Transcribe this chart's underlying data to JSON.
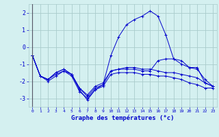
{
  "title": "Graphe des températures (°c)",
  "background_color": "#d4f0f0",
  "grid_color": "#aacccc",
  "line_color": "#0000cc",
  "xlim": [
    -0.5,
    23.5
  ],
  "ylim": [
    -3.5,
    2.5
  ],
  "yticks": [
    -3,
    -2,
    -1,
    0,
    1,
    2
  ],
  "xticks": [
    0,
    1,
    2,
    3,
    4,
    5,
    6,
    7,
    8,
    9,
    10,
    11,
    12,
    13,
    14,
    15,
    16,
    17,
    18,
    19,
    20,
    21,
    22,
    23
  ],
  "series": [
    {
      "x": [
        0,
        1,
        2,
        3,
        4,
        5,
        6,
        7,
        8,
        9,
        10,
        11,
        12,
        13,
        14,
        15,
        16,
        17,
        18,
        19,
        20,
        21,
        22,
        23
      ],
      "y": [
        -0.5,
        -1.7,
        -2.0,
        -1.7,
        -1.4,
        -1.6,
        -2.5,
        -3.1,
        -2.5,
        -2.3,
        -1.6,
        -1.5,
        -1.5,
        -1.5,
        -1.6,
        -1.6,
        -1.7,
        -1.7,
        -1.8,
        -1.9,
        -2.1,
        -2.2,
        -2.4,
        -2.4
      ]
    },
    {
      "x": [
        0,
        1,
        2,
        3,
        4,
        5,
        6,
        7,
        8,
        9,
        10,
        11,
        12,
        13,
        14,
        15,
        16,
        17,
        18,
        19,
        20,
        21,
        22,
        23
      ],
      "y": [
        -0.5,
        -1.7,
        -1.9,
        -1.5,
        -1.3,
        -1.6,
        -2.4,
        -2.9,
        -2.4,
        -2.2,
        -0.5,
        0.6,
        1.3,
        1.6,
        1.8,
        2.1,
        1.8,
        0.7,
        -0.7,
        -1.0,
        -1.2,
        -1.3,
        -1.9,
        -2.3
      ]
    },
    {
      "x": [
        0,
        1,
        2,
        3,
        4,
        5,
        6,
        7,
        8,
        9,
        10,
        11,
        12,
        13,
        14,
        15,
        16,
        17,
        18,
        19,
        20,
        21,
        22,
        23
      ],
      "y": [
        -0.5,
        -1.7,
        -1.9,
        -1.6,
        -1.4,
        -1.7,
        -2.6,
        -3.0,
        -2.5,
        -2.2,
        -1.4,
        -1.3,
        -1.3,
        -1.3,
        -1.4,
        -1.4,
        -0.8,
        -0.7,
        -0.7,
        -0.8,
        -1.2,
        -1.2,
        -2.1,
        -2.3
      ]
    },
    {
      "x": [
        0,
        1,
        2,
        3,
        4,
        5,
        6,
        7,
        8,
        9,
        10,
        11,
        12,
        13,
        14,
        15,
        16,
        17,
        18,
        19,
        20,
        21,
        22,
        23
      ],
      "y": [
        -0.5,
        -1.7,
        -1.9,
        -1.5,
        -1.3,
        -1.6,
        -2.4,
        -2.8,
        -2.3,
        -2.1,
        -1.4,
        -1.3,
        -1.2,
        -1.2,
        -1.3,
        -1.3,
        -1.4,
        -1.5,
        -1.5,
        -1.6,
        -1.7,
        -1.8,
        -2.1,
        -2.3
      ]
    }
  ]
}
